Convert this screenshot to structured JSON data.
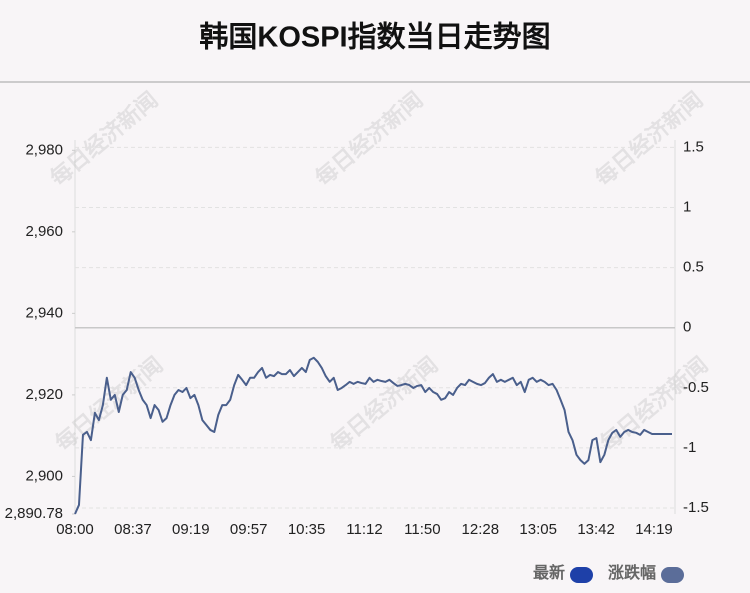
{
  "chart_data": {
    "type": "line",
    "title": "韩国KOSPI指数当日走势图",
    "watermark": "每日经济新闻",
    "xticks": [
      "08:00",
      "08:37",
      "09:19",
      "09:57",
      "10:35",
      "11:12",
      "11:50",
      "12:28",
      "13:05",
      "13:42",
      "14:19"
    ],
    "series": [
      {
        "name": "最新",
        "color": "#1e40a8",
        "line_color": "#4a5f8c",
        "values": [
          2890.78,
          2893.0,
          2910.2,
          2910.9,
          2908.9,
          2915.6,
          2913.8,
          2917.5,
          2924.2,
          2918.8,
          2920.0,
          2915.8,
          2920.0,
          2921.2,
          2925.6,
          2924.2,
          2921.2,
          2918.8,
          2917.5,
          2914.3,
          2917.5,
          2916.3,
          2913.4,
          2914.3,
          2917.5,
          2920.0,
          2921.2,
          2920.7,
          2921.7,
          2919.2,
          2920.0,
          2917.5,
          2913.8,
          2912.6,
          2911.4,
          2910.9,
          2915.1,
          2917.5,
          2917.5,
          2918.8,
          2922.4,
          2924.9,
          2923.7,
          2922.4,
          2924.2,
          2924.2,
          2925.6,
          2926.6,
          2924.2,
          2924.9,
          2924.6,
          2925.6,
          2925.1,
          2925.1,
          2926.1,
          2924.6,
          2925.6,
          2926.6,
          2925.6,
          2928.6,
          2929.1,
          2928.1,
          2926.6,
          2924.6,
          2923.2,
          2924.2,
          2921.2,
          2921.7,
          2922.4,
          2923.2,
          2922.7,
          2923.2,
          2922.9,
          2922.7,
          2924.2,
          2923.2,
          2923.7,
          2923.4,
          2923.2,
          2923.7,
          2922.9,
          2922.2,
          2922.4,
          2922.7,
          2922.4,
          2921.7,
          2922.2,
          2922.4,
          2920.7,
          2921.7,
          2920.7,
          2920.2,
          2918.8,
          2919.2,
          2920.7,
          2920.0,
          2921.7,
          2922.7,
          2922.4,
          2923.7,
          2923.2,
          2922.7,
          2922.4,
          2922.9,
          2924.2,
          2925.1,
          2923.2,
          2923.7,
          2923.2,
          2923.7,
          2924.2,
          2922.4,
          2923.2,
          2920.7,
          2923.7,
          2924.2,
          2923.2,
          2923.7,
          2923.2,
          2922.4,
          2922.7,
          2921.2,
          2918.8,
          2916.3,
          2910.9,
          2908.9,
          2905.3,
          2904.0,
          2903.1,
          2904.0,
          2908.9,
          2909.4,
          2903.5,
          2905.3,
          2908.9,
          2910.7,
          2911.4,
          2909.7,
          2910.9,
          2911.4,
          2910.9,
          2910.7,
          2910.2,
          2911.4,
          2910.9,
          2910.4,
          2910.4,
          2910.4,
          2910.4,
          2910.4,
          2910.4
        ]
      },
      {
        "name": "涨跌幅",
        "color": "#5b6d99",
        "axis": "y2"
      }
    ],
    "ylim": [
      2890.78,
      2981.3
    ],
    "yticks": [
      {
        "value": 2890.78,
        "label": "2,890.78"
      },
      {
        "value": 2900,
        "label": "2,900"
      },
      {
        "value": 2920,
        "label": "2,920"
      },
      {
        "value": 2940,
        "label": "2,940"
      },
      {
        "value": 2960,
        "label": "2,960"
      },
      {
        "value": 2980,
        "label": "2,980"
      }
    ],
    "y2lim": [
      -1.55,
      1.52
    ],
    "y2ticks": [
      1.5,
      1,
      0.5,
      0,
      -0.5,
      -1,
      -1.5
    ],
    "grid": true
  }
}
